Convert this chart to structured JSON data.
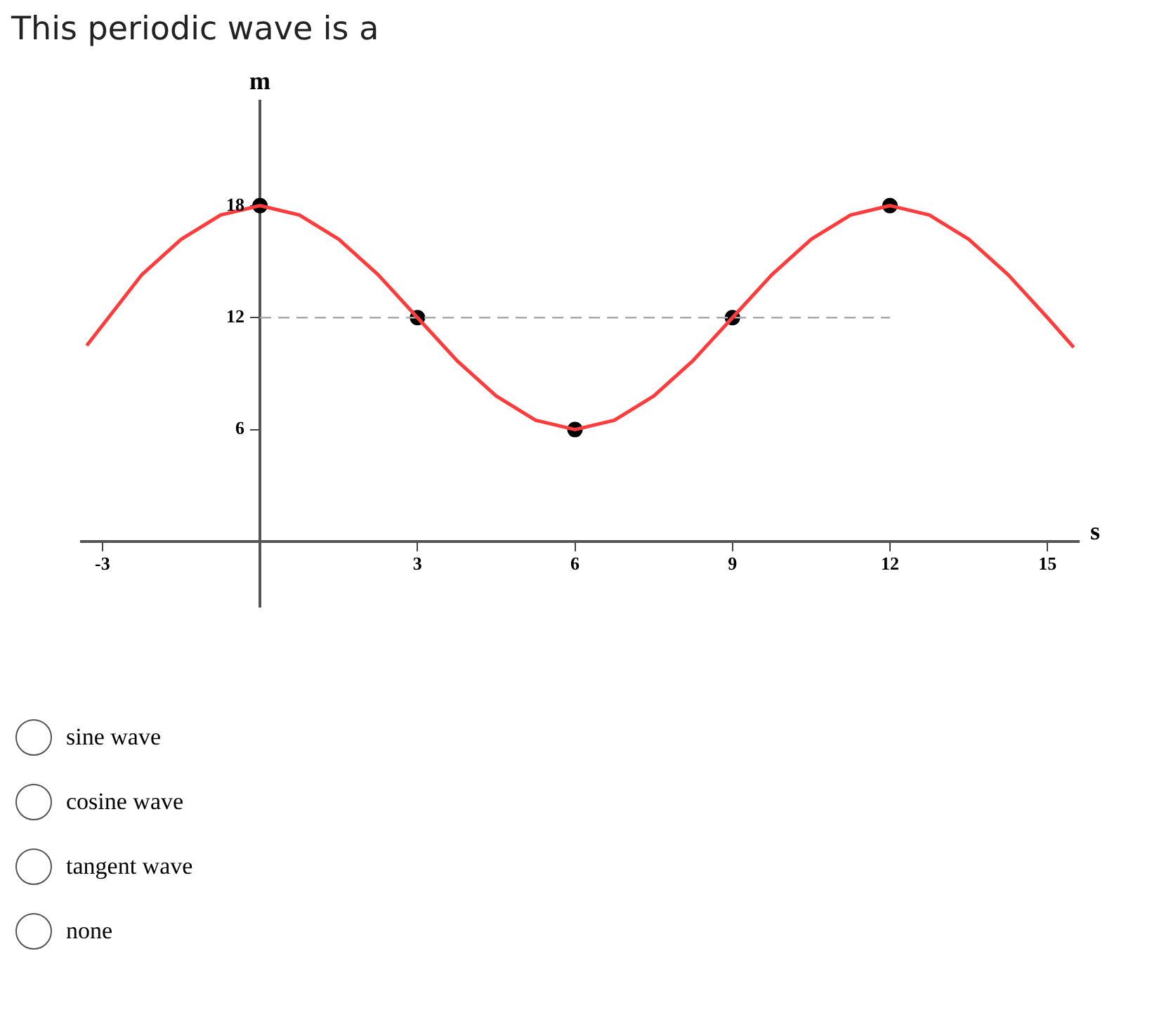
{
  "chart_data": {
    "type": "line",
    "title": "This periodic wave is a",
    "xlabel": "s",
    "ylabel": "m",
    "xlim": [
      -3.4,
      15.6
    ],
    "ylim": [
      -3.5,
      23.6
    ],
    "xticks": [
      -3,
      3,
      6,
      9,
      12,
      15
    ],
    "yticks": [
      6,
      12,
      18
    ],
    "grid": false,
    "legend": false,
    "marker": "none",
    "series": [
      {
        "color": "#ff3b3b",
        "x": [
          -3.3,
          -2.25,
          -1.5,
          -0.75,
          0,
          0.75,
          1.5,
          2.25,
          3,
          3.75,
          4.5,
          5.25,
          6,
          6.75,
          7.5,
          8.25,
          9,
          9.75,
          10.5,
          11.25,
          12,
          12.75,
          13.5,
          14.25,
          15,
          15.5
        ],
        "values": [
          10.5,
          14.3,
          16.2,
          17.5,
          18,
          17.5,
          16.2,
          14.3,
          12,
          9.7,
          7.8,
          6.5,
          6,
          6.5,
          7.8,
          9.7,
          12,
          14.3,
          16.2,
          17.5,
          18,
          17.5,
          16.2,
          14.3,
          12,
          10.4
        ]
      },
      {
        "color": "#aaaaaa",
        "line_style": "dashed",
        "x": [
          0,
          12
        ],
        "values": [
          12,
          12
        ]
      },
      {
        "type": "scatter",
        "color": "#000000",
        "marker": "circle",
        "x": [
          0,
          3,
          6,
          9,
          12
        ],
        "values": [
          18,
          12,
          6,
          12,
          18
        ]
      }
    ],
    "annotations": [
      "sine wave",
      "cosine wave",
      "tangent wave",
      "none"
    ]
  }
}
